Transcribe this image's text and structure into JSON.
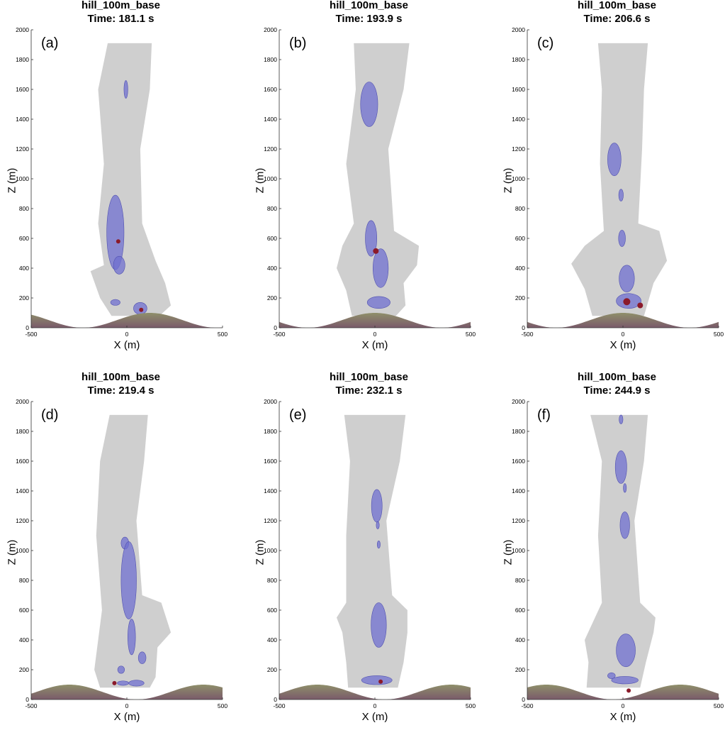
{
  "axis": {
    "x_label": "X (m)",
    "y_label": "Z (m)",
    "x_ticks": [
      "-500",
      "0",
      "500"
    ],
    "y_ticks": [
      "0",
      "200",
      "400",
      "600",
      "800",
      "1000",
      "1200",
      "1400",
      "1600",
      "1800",
      "2000"
    ],
    "xlim": [
      -500,
      500
    ],
    "ylim": [
      0,
      2000
    ]
  },
  "colors": {
    "plume": "#c7c7c7",
    "vortex": "#7070d0",
    "core": "#8b1a2a",
    "terrain_top": "#8f8f6a",
    "terrain_bottom": "#7a5a6a"
  },
  "panels": [
    {
      "case": "hill_100m_base",
      "time": "Time: 181.1 s",
      "label": "(a)"
    },
    {
      "case": "hill_100m_base",
      "time": "Time: 193.9 s",
      "label": "(b)"
    },
    {
      "case": "hill_100m_base",
      "time": "Time: 206.6 s",
      "label": "(c)"
    },
    {
      "case": "hill_100m_base",
      "time": "Time: 219.4 s",
      "label": "(d)"
    },
    {
      "case": "hill_100m_base",
      "time": "Time: 232.1 s",
      "label": "(e)"
    },
    {
      "case": "hill_100m_base",
      "time": "Time: 244.9 s",
      "label": "(f)"
    }
  ]
}
